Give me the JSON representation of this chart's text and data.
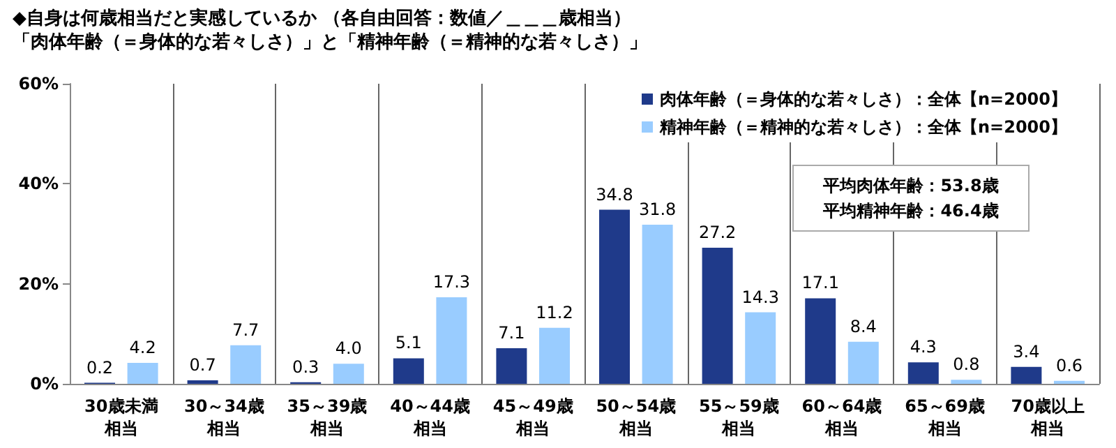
{
  "chart_data": {
    "type": "bar",
    "title": "◆自身は何歳相当だと実感しているか （各自由回答：数値／＿＿＿歳相当）",
    "subtitle": "「肉体年齢（＝身体的な若々しさ）」と「精神年齢（＝精神的な若々しさ）」",
    "categories": [
      "30歳未満相当",
      "30～34歳相当",
      "35～39歳相当",
      "40～44歳相当",
      "45～49歳相当",
      "50～54歳相当",
      "55～59歳相当",
      "60～64歳相当",
      "65～69歳相当",
      "70歳以上相当"
    ],
    "series": [
      {
        "name": "肉体年齢（＝身体的な若々しさ）：全体【n=2000】",
        "color": "#1f3a8a",
        "values": [
          0.2,
          0.7,
          0.3,
          5.1,
          7.1,
          34.8,
          27.2,
          17.1,
          4.3,
          3.4
        ]
      },
      {
        "name": "精神年齢（＝精神的な若々しさ）：全体【n=2000】",
        "color": "#99ccff",
        "values": [
          4.2,
          7.7,
          4.0,
          17.3,
          11.2,
          31.8,
          14.3,
          8.4,
          0.8,
          0.6
        ],
        "value_labels": [
          "4.2",
          "7.7",
          "4.0",
          "17.3",
          "11.2",
          "31.8",
          "14.3",
          "8.4",
          "0.8",
          "0.6"
        ]
      }
    ],
    "ylim": [
      0,
      60
    ],
    "yticks": [
      {
        "value": 0,
        "label": "0%"
      },
      {
        "value": 20,
        "label": "20%"
      },
      {
        "value": 40,
        "label": "40%"
      },
      {
        "value": 60,
        "label": "60%"
      }
    ],
    "data_labels": true,
    "grid": "x",
    "legend": "top right",
    "annotations": [
      "平均肉体年齢：53.8歳",
      "平均精神年齢：46.4歳"
    ]
  }
}
